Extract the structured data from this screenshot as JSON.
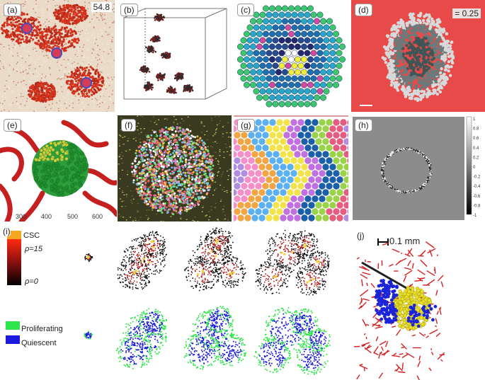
{
  "panels": {
    "a": {
      "label": "(a)",
      "value": "54.8"
    },
    "b": {
      "label": "(b)"
    },
    "c": {
      "label": "(c)"
    },
    "d": {
      "label": "(d)",
      "value": "= 0.25"
    },
    "e": {
      "label": "(e)",
      "ticks": [
        "300",
        "400",
        "500",
        "600"
      ]
    },
    "f": {
      "label": "(f)"
    },
    "g": {
      "label": "(g)"
    },
    "h": {
      "label": "(h)",
      "colorbar_ticks": [
        "1",
        "0.8",
        "0.6",
        "0.4",
        "0.2",
        "0",
        "-0.2",
        "-0.4",
        "-0.6",
        "-0.8",
        "-1"
      ]
    },
    "i": {
      "label": "(i)",
      "legend_top": {
        "csc": "CSC",
        "rho_max": "ρ=15",
        "rho_min": "ρ=0"
      },
      "legend_bottom": {
        "proliferating": "Proliferating",
        "quiescent": "Quiescent"
      },
      "colors": {
        "csc": "#f5a623",
        "proliferating": "#2ee64a",
        "quiescent": "#1a1adf"
      }
    },
    "j": {
      "label": "(j)",
      "scale_bar": "0.1 mm"
    }
  }
}
